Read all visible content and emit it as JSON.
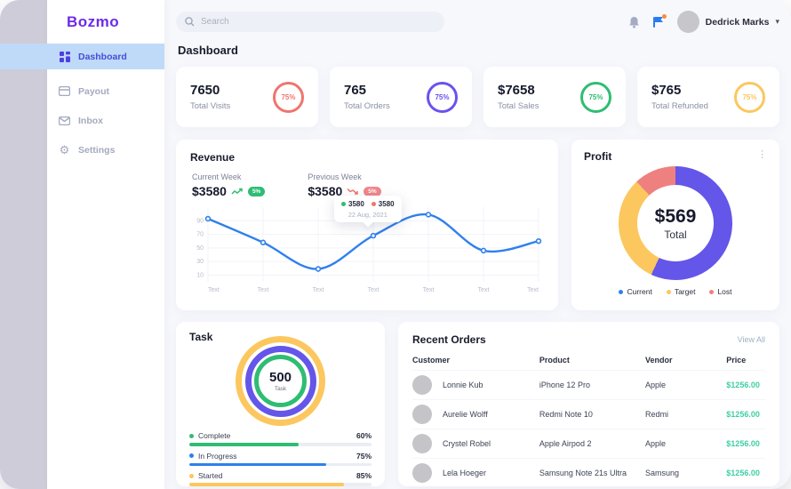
{
  "app": {
    "logo_text": "Bozmo"
  },
  "sidebar": {
    "items": [
      {
        "label": "Dashboard"
      },
      {
        "label": "Payout"
      },
      {
        "label": "Inbox"
      },
      {
        "label": "Settings"
      }
    ]
  },
  "topbar": {
    "search_placeholder": "Search",
    "user_name": "Dedrick Marks"
  },
  "page_title": "Dashboard",
  "stats": [
    {
      "value": "7650",
      "label": "Total Visits",
      "percent": "75%",
      "color": "#f0756d"
    },
    {
      "value": "765",
      "label": "Total Orders",
      "percent": "75%",
      "color": "#6a52ef"
    },
    {
      "value": "$7658",
      "label": "Total Sales",
      "percent": "75%",
      "color": "#2ebd73"
    },
    {
      "value": "$765",
      "label": "Total Refunded",
      "percent": "75%",
      "color": "#fcc75e"
    }
  ],
  "revenue": {
    "title": "Revenue",
    "current": {
      "label": "Current Week",
      "value": "$3580",
      "badge": "5%",
      "badge_color": "#2ebd73"
    },
    "previous": {
      "label": "Previous Week",
      "value": "$3580",
      "badge": "5%",
      "badge_color": "#f0868a"
    },
    "tooltip": {
      "value1": "3580",
      "dot1_color": "#2ebd73",
      "value2": "3580",
      "dot2_color": "#f0756d",
      "date": "22 Aug, 2021"
    }
  },
  "chart_data": [
    {
      "type": "line",
      "title": "Revenue weekly trend",
      "x_labels": [
        "Text",
        "Text",
        "Text",
        "Text",
        "Text",
        "Text",
        "Text"
      ],
      "series": [
        {
          "name": "Current Week",
          "color": "#2f80ec",
          "values": [
            93,
            58,
            19,
            68,
            99,
            46,
            60
          ]
        }
      ],
      "ylim": [
        0,
        110
      ],
      "yticks": [
        10,
        30,
        50,
        70,
        90
      ],
      "grid": true,
      "legend_position": "none",
      "tooltip_at_index": 3
    },
    {
      "type": "donut",
      "title": "Profit",
      "center_value": "$569",
      "center_label": "Total",
      "slices": [
        {
          "name": "Current",
          "value": 57,
          "color": "#6456e9"
        },
        {
          "name": "Target",
          "value": 31,
          "color": "#fcc75e"
        },
        {
          "name": "Lost",
          "value": 12,
          "color": "#ef8080"
        }
      ]
    },
    {
      "type": "rings",
      "title": "Task",
      "center_value": "500",
      "center_label": "Task",
      "rings": [
        {
          "name": "Started",
          "color": "#fcc75e"
        },
        {
          "name": "In Progress",
          "color": "#6456e9"
        },
        {
          "name": "Complete",
          "color": "#2ebd73"
        }
      ],
      "bars": [
        {
          "label": "Complete",
          "percent": 60,
          "percent_text": "60%",
          "color": "#2ebd73"
        },
        {
          "label": "In Progress",
          "percent": 75,
          "percent_text": "75%",
          "color": "#2f80ec"
        },
        {
          "label": "Started",
          "percent": 85,
          "percent_text": "85%",
          "color": "#fcc75e"
        }
      ]
    }
  ],
  "profit": {
    "title": "Profit",
    "legend": [
      {
        "label": "Current",
        "color": "#2f80ec"
      },
      {
        "label": "Target",
        "color": "#fcc75e"
      },
      {
        "label": "Lost",
        "color": "#ef8080"
      }
    ]
  },
  "task": {
    "title": "Task"
  },
  "orders": {
    "title": "Recent Orders",
    "view_all": "View All",
    "columns": [
      "Customer",
      "Product",
      "Vendor",
      "Price"
    ],
    "price_color": "#3ecfa4",
    "rows": [
      {
        "customer": "Lonnie Kub",
        "product": "iPhone 12 Pro",
        "vendor": "Apple",
        "price": "$1256.00"
      },
      {
        "customer": "Aurelie Wolff",
        "product": "Redmi Note 10",
        "vendor": "Redmi",
        "price": "$1256.00"
      },
      {
        "customer": "Crystel Robel",
        "product": "Apple Airpod 2",
        "vendor": "Apple",
        "price": "$1256.00"
      },
      {
        "customer": "Lela Hoeger",
        "product": "Samsung Note 21s Ultra",
        "vendor": "Samsung",
        "price": "$1256.00"
      }
    ]
  }
}
